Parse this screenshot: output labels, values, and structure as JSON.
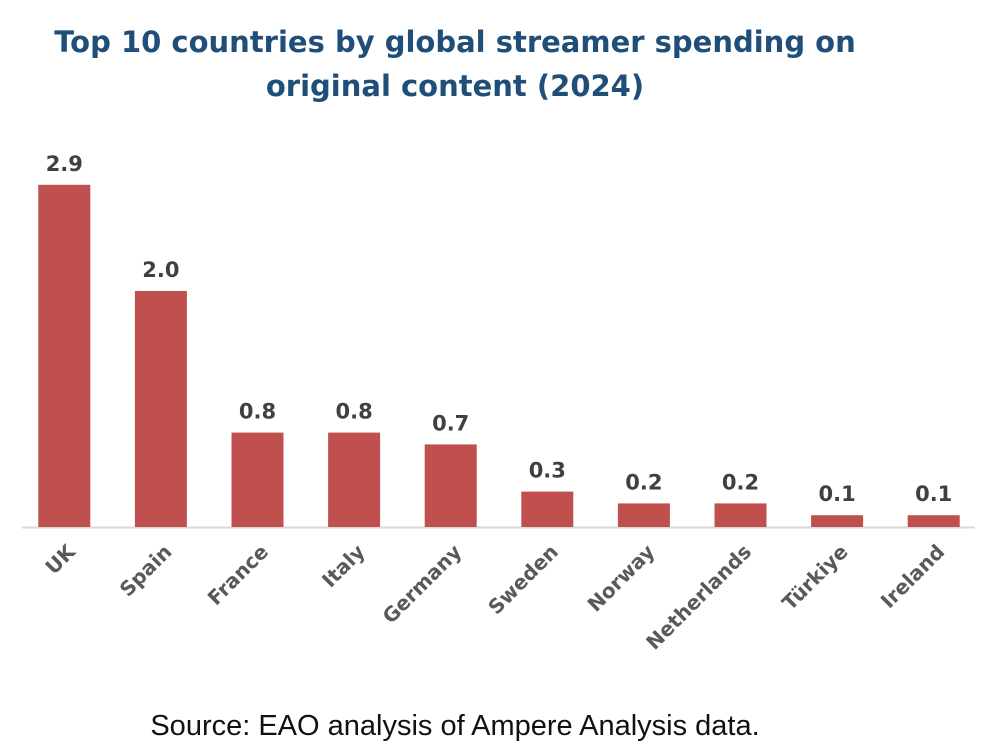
{
  "chart_data": {
    "type": "bar",
    "title": "Top 10 countries by global  streamer spending on original content (2024)",
    "title_lines": [
      "Top 10 countries by global  streamer spending on",
      "original content (2024)"
    ],
    "categories": [
      "UK",
      "Spain",
      "France",
      "Italy",
      "Germany",
      "Sweden",
      "Norway",
      "Netherlands",
      "Türkiye",
      "Ireland"
    ],
    "values": [
      2.9,
      2.0,
      0.8,
      0.8,
      0.7,
      0.3,
      0.2,
      0.2,
      0.1,
      0.1
    ],
    "value_labels": [
      "2.9",
      "2.0",
      "0.8",
      "0.8",
      "0.7",
      "0.3",
      "0.2",
      "0.2",
      "0.1",
      "0.1"
    ],
    "xlabel": "",
    "ylabel": "",
    "ylim": [
      0,
      3.0
    ],
    "grid": false,
    "legend": "none",
    "bar_color": "#c0504d",
    "label_color": "#404040",
    "axis_color": "#d9d9d9"
  },
  "source": "Source: EAO analysis of Ampere Analysis data."
}
